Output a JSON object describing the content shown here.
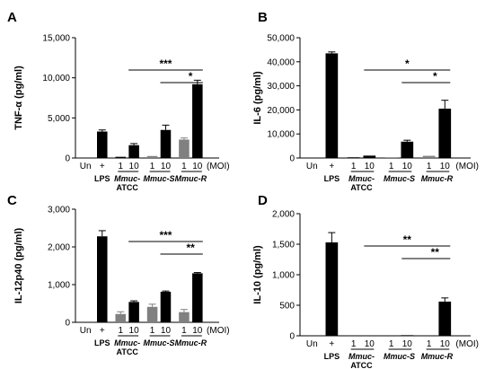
{
  "panel_labels": [
    "A",
    "B",
    "C",
    "D"
  ],
  "common": {
    "group_labels": [
      "LPS",
      "Mmuc-",
      "ATCC",
      "Mmuc-S",
      "Mmuc-R"
    ],
    "moi_label": "(MOI)",
    "un_label": "Un",
    "plus_label": "+",
    "moi_values": [
      "1",
      "10"
    ]
  },
  "colors": {
    "black": "#000000",
    "gray": "#808080"
  },
  "chart_data": [
    {
      "type": "bar",
      "panel": "A",
      "ylabel": "TNF-α (pg/ml)",
      "ylim": [
        0,
        15000
      ],
      "yticks": [
        "0",
        "5,000",
        "10,000",
        "15,000"
      ],
      "categories": [
        "Un",
        "+",
        "1",
        "10",
        "1",
        "10",
        "1",
        "10"
      ],
      "values": [
        0,
        3300,
        150,
        1600,
        250,
        3500,
        2300,
        9200
      ],
      "errors": [
        0,
        200,
        0,
        200,
        0,
        600,
        200,
        500
      ],
      "colors": [
        "black",
        "black",
        "black",
        "black",
        "gray",
        "black",
        "gray",
        "black"
      ],
      "sig": [
        {
          "label": "***",
          "from": 3,
          "to": 7
        },
        {
          "label": "*",
          "from": 5,
          "to": 7
        }
      ]
    },
    {
      "type": "bar",
      "panel": "B",
      "ylabel": "IL-6 (pg/ml)",
      "ylim": [
        0,
        50000
      ],
      "yticks": [
        "0",
        "10,000",
        "20,000",
        "30,000",
        "40,000",
        "50,000"
      ],
      "categories": [
        "Un",
        "+",
        "1",
        "10",
        "1",
        "10",
        "1",
        "10"
      ],
      "values": [
        0,
        43500,
        300,
        1000,
        300,
        6800,
        900,
        20500
      ],
      "errors": [
        0,
        600,
        0,
        0,
        0,
        600,
        0,
        3500
      ],
      "colors": [
        "black",
        "black",
        "black",
        "black",
        "gray",
        "black",
        "gray",
        "black"
      ],
      "sig": [
        {
          "label": "*",
          "from": 3,
          "to": 7
        },
        {
          "label": "*",
          "from": 5,
          "to": 7
        }
      ]
    },
    {
      "type": "bar",
      "panel": "C",
      "ylabel": "IL-12p40 (pg/ml)",
      "ylim": [
        0,
        3000
      ],
      "yticks": [
        "0",
        "1,000",
        "2,000",
        "3,000"
      ],
      "categories": [
        "Un",
        "+",
        "1",
        "10",
        "1",
        "10",
        "1",
        "10"
      ],
      "values": [
        0,
        2280,
        220,
        540,
        410,
        810,
        270,
        1300
      ],
      "errors": [
        0,
        150,
        60,
        30,
        70,
        20,
        70,
        20
      ],
      "colors": [
        "black",
        "black",
        "gray",
        "black",
        "gray",
        "black",
        "gray",
        "black"
      ],
      "sig": [
        {
          "label": "***",
          "from": 3,
          "to": 7
        },
        {
          "label": "**",
          "from": 5,
          "to": 7
        }
      ]
    },
    {
      "type": "bar",
      "panel": "D",
      "ylabel": "IL-10 (pg/ml)",
      "ylim": [
        0,
        2000
      ],
      "yticks": [
        "0",
        "500",
        "1,000",
        "1,500",
        "2,000"
      ],
      "categories": [
        "Un",
        "+",
        "1",
        "10",
        "1",
        "10",
        "1",
        "10"
      ],
      "values": [
        0,
        1530,
        0,
        0,
        0,
        10,
        0,
        560
      ],
      "errors": [
        0,
        160,
        0,
        0,
        0,
        0,
        0,
        60
      ],
      "colors": [
        "black",
        "black",
        "black",
        "black",
        "gray",
        "black",
        "gray",
        "black"
      ],
      "sig": [
        {
          "label": "**",
          "from": 3,
          "to": 7
        },
        {
          "label": "**",
          "from": 5,
          "to": 7
        }
      ]
    }
  ]
}
